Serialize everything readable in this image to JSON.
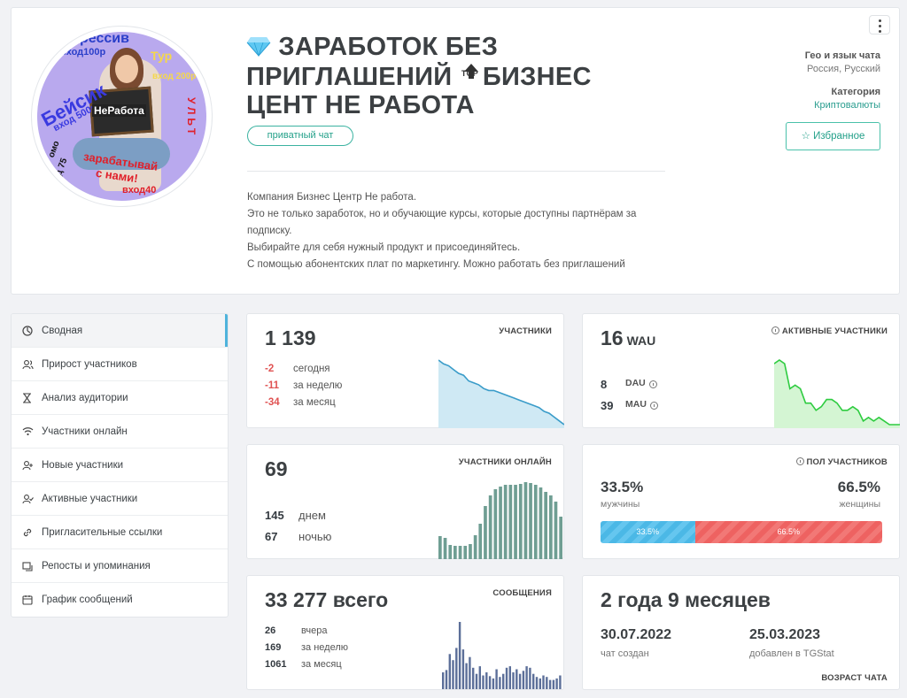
{
  "header": {
    "title_part1": "ЗАРАБОТОК БЕЗ ПРИГЛАШЕНИЙ",
    "top_badge": "TOP",
    "title_part2": "БИЗНЕС ЦЕНТ НЕ РАБОТА",
    "tag": "приватный чат",
    "description": [
      "Компания Бизнес Центр Не работа.",
      "Это не только заработок, но и обучающие курсы, которые доступны партнёрам за",
      "подписку.",
      "Выбирайте для себя нужный продукт и присоединяйтесь.",
      "С помощью абонентских плат по маркетингу. Можно работать без приглашений"
    ],
    "geo_label": "Гео и язык чата",
    "geo_value": "Россия, Русский",
    "category_label": "Категория",
    "category_value": "Криптовалюты",
    "favorite_label": "Избранное",
    "avatar_texts": {
      "t1": "рессив",
      "t2": "вход100р",
      "t3": "Тур",
      "t4": "вход 200р",
      "t5": "Бейсик",
      "t6": "вход 500р",
      "t7": "НеРабота",
      "t8": "омо",
      "t9": "д 75",
      "t10": "зарабатывай",
      "t11": "с нами!",
      "t12": "вход40",
      "t13": "УЛЬТ"
    }
  },
  "sidebar": {
    "items": [
      {
        "label": "Сводная",
        "icon": "dashboard-icon",
        "active": true
      },
      {
        "label": "Прирост участников",
        "icon": "users-icon"
      },
      {
        "label": "Анализ аудитории",
        "icon": "hourglass-icon"
      },
      {
        "label": "Участники онлайн",
        "icon": "wifi-icon"
      },
      {
        "label": "Новые участники",
        "icon": "user-plus-icon"
      },
      {
        "label": "Активные участники",
        "icon": "user-check-icon"
      },
      {
        "label": "Пригласительные ссылки",
        "icon": "link-icon"
      },
      {
        "label": "Репосты и упоминания",
        "icon": "repost-icon"
      },
      {
        "label": "График сообщений",
        "icon": "calendar-icon"
      }
    ]
  },
  "members": {
    "caption": "УЧАСТНИКИ",
    "total": "1 139",
    "rows": [
      {
        "value": "-2",
        "label": "сегодня"
      },
      {
        "value": "-11",
        "label": "за неделю"
      },
      {
        "value": "-34",
        "label": "за месяц"
      }
    ]
  },
  "active": {
    "caption": "АКТИВНЫЕ УЧАСТНИКИ",
    "wau": "16",
    "wau_unit": "WAU",
    "dau": "8",
    "dau_unit": "DAU",
    "mau": "39",
    "mau_unit": "MAU"
  },
  "online": {
    "caption": "УЧАСТНИКИ ОНЛАЙН",
    "now": "69",
    "day": "145",
    "day_label": "днем",
    "night": "67",
    "night_label": "ночью"
  },
  "gender": {
    "caption": "ПОЛ УЧАСТНИКОВ",
    "male_pct": "33.5%",
    "male_label": "мужчины",
    "female_pct": "66.5%",
    "female_label": "женщины",
    "male_fraction": 0.335,
    "bar_male": "33.5%",
    "bar_female": "66.5%"
  },
  "messages": {
    "caption": "СООБЩЕНИЯ",
    "total": "33 277 всего",
    "rows": [
      {
        "value": "26",
        "label": "вчера"
      },
      {
        "value": "169",
        "label": "за неделю"
      },
      {
        "value": "1061",
        "label": "за месяц"
      }
    ]
  },
  "age": {
    "caption": "ВОЗРАСТ ЧАТА",
    "title": "2 года 9 месяцев",
    "created_date": "30.07.2022",
    "created_label": "чат создан",
    "added_date": "25.03.2023",
    "added_label": "добавлен в TGStat"
  },
  "colors": {
    "accent": "#23a089",
    "negative": "#e05353",
    "members_line": "#3a9cc9",
    "active_line": "#2ecc40",
    "bars": "#6f9e93",
    "msg_bars": "#5c6f99"
  },
  "chart_data": [
    {
      "type": "area",
      "name": "members-sparkline",
      "values": [
        1173,
        1171,
        1170,
        1168,
        1166,
        1165,
        1162,
        1161,
        1160,
        1158,
        1157,
        1157,
        1156,
        1155,
        1154,
        1153,
        1152,
        1151,
        1150,
        1149,
        1148,
        1146,
        1145,
        1143,
        1141,
        1139
      ]
    },
    {
      "type": "area",
      "name": "active-sparkline",
      "values": [
        33,
        34,
        33,
        26,
        27,
        26,
        22,
        22,
        20,
        21,
        23,
        23,
        22,
        20,
        20,
        21,
        20,
        17,
        18,
        17,
        18,
        17,
        16,
        16,
        16
      ]
    },
    {
      "type": "bar",
      "name": "online-bars",
      "values": [
        26,
        24,
        16,
        15,
        15,
        15,
        17,
        27,
        40,
        60,
        72,
        79,
        82,
        84,
        84,
        84,
        85,
        87,
        86,
        84,
        81,
        76,
        72,
        65,
        48
      ]
    },
    {
      "type": "bar",
      "name": "messages-bars",
      "values": [
        22,
        25,
        46,
        38,
        54,
        88,
        52,
        34,
        42,
        28,
        20,
        30,
        18,
        22,
        17,
        14,
        26,
        16,
        20,
        28,
        30,
        22,
        26,
        20,
        24,
        30,
        28,
        20,
        16,
        14,
        18,
        16,
        12,
        12,
        14,
        18
      ]
    }
  ]
}
